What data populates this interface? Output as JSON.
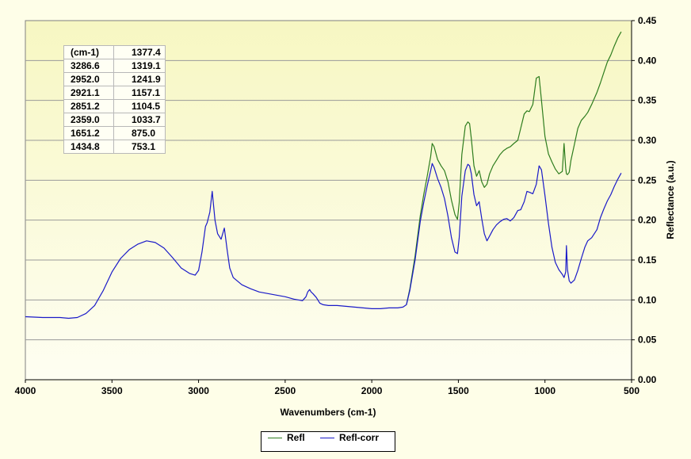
{
  "chart_data": {
    "type": "line",
    "xlabel": "Wavenumbers (cm-1)",
    "ylabel": "Reflectance (a.u.)",
    "xlim": [
      4000,
      500
    ],
    "ylim": [
      0.0,
      0.45
    ],
    "x_ticks": [
      "4000",
      "3500",
      "3000",
      "2500",
      "2000",
      "1500",
      "1000",
      "500"
    ],
    "y_ticks": [
      "0.00",
      "0.05",
      "0.10",
      "0.15",
      "0.20",
      "0.25",
      "0.30",
      "0.35",
      "0.40",
      "0.45"
    ],
    "grid": true,
    "colors": {
      "Refl": "#2e7d1e",
      "Refl-corr": "#1a1ac8",
      "plot_bg_top": "#f7f7c2",
      "plot_bg_bottom": "#fefef2"
    },
    "legend": {
      "placement": "bottom-center",
      "entries": [
        "Refl",
        "Refl-corr"
      ]
    },
    "peak_table": {
      "header": [
        "(cm-1)",
        "1377.4"
      ],
      "rows": [
        [
          "3286.6",
          "1319.1"
        ],
        [
          "2952.0",
          "1241.9"
        ],
        [
          "2921.1",
          "1157.1"
        ],
        [
          "2851.2",
          "1104.5"
        ],
        [
          "2359.0",
          "1033.7"
        ],
        [
          "1651.2",
          "875.0"
        ],
        [
          "1434.8",
          "753.1"
        ]
      ]
    },
    "series": [
      {
        "name": "Refl-corr",
        "x": [
          4000,
          3900,
          3800,
          3750,
          3700,
          3650,
          3600,
          3550,
          3500,
          3450,
          3400,
          3350,
          3300,
          3250,
          3200,
          3150,
          3100,
          3050,
          3020,
          3000,
          2980,
          2960,
          2950,
          2935,
          2921,
          2905,
          2890,
          2870,
          2851,
          2835,
          2820,
          2800,
          2750,
          2700,
          2650,
          2600,
          2550,
          2500,
          2450,
          2400,
          2380,
          2370,
          2359,
          2350,
          2340,
          2320,
          2300,
          2280,
          2250,
          2200,
          2150,
          2100,
          2050,
          2000,
          1950,
          1900,
          1850,
          1820,
          1800,
          1780,
          1750,
          1720,
          1700,
          1680,
          1660,
          1651,
          1640,
          1620,
          1600,
          1580,
          1560,
          1540,
          1520,
          1505,
          1495,
          1480,
          1460,
          1445,
          1435,
          1425,
          1410,
          1395,
          1380,
          1365,
          1350,
          1335,
          1320,
          1300,
          1280,
          1260,
          1240,
          1220,
          1200,
          1180,
          1157,
          1140,
          1120,
          1104,
          1090,
          1070,
          1050,
          1034,
          1020,
          1000,
          980,
          960,
          940,
          920,
          900,
          890,
          880,
          876,
          870,
          860,
          850,
          830,
          810,
          790,
          770,
          753,
          730,
          700,
          680,
          660,
          640,
          620,
          600,
          580,
          560
        ],
        "y": [
          0.079,
          0.078,
          0.078,
          0.077,
          0.078,
          0.083,
          0.093,
          0.112,
          0.135,
          0.152,
          0.163,
          0.17,
          0.174,
          0.172,
          0.165,
          0.153,
          0.14,
          0.133,
          0.131,
          0.137,
          0.16,
          0.192,
          0.197,
          0.21,
          0.236,
          0.2,
          0.183,
          0.176,
          0.19,
          0.163,
          0.14,
          0.128,
          0.119,
          0.114,
          0.11,
          0.108,
          0.106,
          0.104,
          0.101,
          0.099,
          0.104,
          0.11,
          0.113,
          0.11,
          0.108,
          0.103,
          0.096,
          0.094,
          0.093,
          0.093,
          0.092,
          0.091,
          0.09,
          0.089,
          0.089,
          0.09,
          0.09,
          0.091,
          0.094,
          0.112,
          0.15,
          0.198,
          0.222,
          0.243,
          0.262,
          0.271,
          0.266,
          0.252,
          0.241,
          0.227,
          0.205,
          0.178,
          0.16,
          0.158,
          0.178,
          0.23,
          0.262,
          0.27,
          0.268,
          0.258,
          0.232,
          0.218,
          0.223,
          0.202,
          0.183,
          0.174,
          0.18,
          0.188,
          0.194,
          0.198,
          0.201,
          0.202,
          0.199,
          0.203,
          0.212,
          0.213,
          0.223,
          0.236,
          0.235,
          0.233,
          0.245,
          0.268,
          0.263,
          0.231,
          0.196,
          0.166,
          0.147,
          0.138,
          0.132,
          0.128,
          0.135,
          0.168,
          0.138,
          0.124,
          0.121,
          0.125,
          0.137,
          0.152,
          0.166,
          0.174,
          0.178,
          0.188,
          0.203,
          0.214,
          0.224,
          0.232,
          0.242,
          0.251,
          0.259
        ]
      },
      {
        "name": "Refl",
        "x": [
          1800,
          1780,
          1750,
          1720,
          1700,
          1680,
          1660,
          1651,
          1640,
          1620,
          1600,
          1580,
          1560,
          1540,
          1520,
          1505,
          1495,
          1480,
          1460,
          1445,
          1435,
          1425,
          1410,
          1395,
          1380,
          1365,
          1350,
          1335,
          1320,
          1300,
          1280,
          1260,
          1240,
          1220,
          1200,
          1180,
          1157,
          1140,
          1120,
          1104,
          1090,
          1070,
          1050,
          1034,
          1020,
          1000,
          980,
          960,
          940,
          920,
          900,
          890,
          880,
          876,
          870,
          860,
          850,
          830,
          810,
          790,
          770,
          753,
          730,
          700,
          680,
          660,
          640,
          620,
          600,
          580,
          560
        ],
        "y": [
          0.094,
          0.114,
          0.155,
          0.205,
          0.232,
          0.255,
          0.28,
          0.296,
          0.292,
          0.276,
          0.268,
          0.262,
          0.248,
          0.225,
          0.207,
          0.201,
          0.222,
          0.282,
          0.318,
          0.323,
          0.321,
          0.302,
          0.268,
          0.255,
          0.262,
          0.248,
          0.241,
          0.245,
          0.258,
          0.268,
          0.275,
          0.282,
          0.287,
          0.29,
          0.292,
          0.296,
          0.3,
          0.315,
          0.333,
          0.337,
          0.336,
          0.345,
          0.378,
          0.38,
          0.35,
          0.305,
          0.283,
          0.273,
          0.264,
          0.258,
          0.261,
          0.296,
          0.265,
          0.258,
          0.257,
          0.26,
          0.275,
          0.295,
          0.315,
          0.325,
          0.33,
          0.335,
          0.345,
          0.36,
          0.372,
          0.385,
          0.398,
          0.407,
          0.418,
          0.428,
          0.436
        ]
      }
    ]
  }
}
